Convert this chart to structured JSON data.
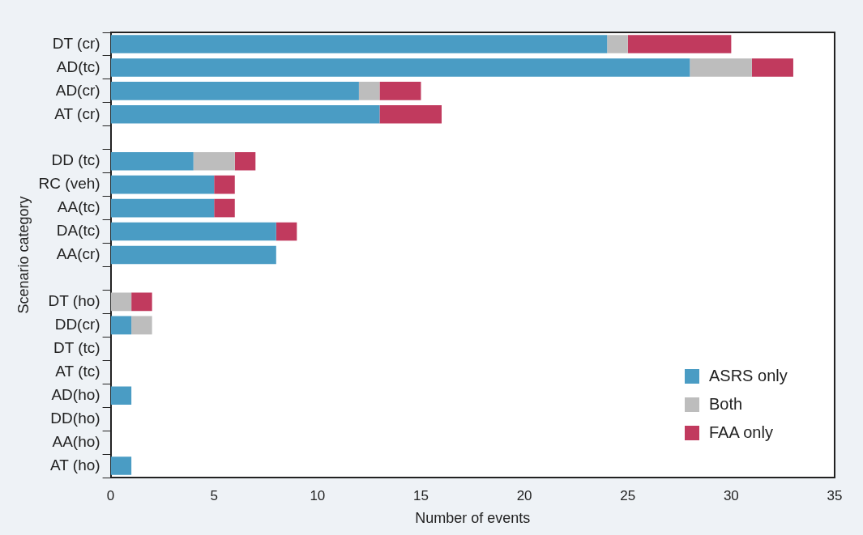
{
  "chart_data": {
    "type": "bar",
    "orientation": "horizontal",
    "stacked": true,
    "xlabel": "Number of events",
    "ylabel": "Scenario category",
    "categories": [
      "DT (cr)",
      "AD(tc)",
      "AD(cr)",
      "AT (cr)",
      null,
      "DD (tc)",
      "RC (veh)",
      "AA(tc)",
      "DA(tc)",
      "AA(cr)",
      null,
      "DT (ho)",
      "DD(cr)",
      "DT (tc)",
      "AT (tc)",
      "AD(ho)",
      "DD(ho)",
      "AA(ho)",
      "AT (ho)"
    ],
    "series": [
      {
        "name": "ASRS only",
        "color": "#4a9cc4",
        "values": [
          24,
          28,
          12,
          13,
          null,
          4,
          5,
          5,
          8,
          8,
          null,
          0,
          1,
          0,
          0,
          1,
          0,
          0,
          1
        ]
      },
      {
        "name": "Both",
        "color": "#bdbdbd",
        "values": [
          1,
          3,
          1,
          0,
          null,
          2,
          0,
          0,
          0,
          0,
          null,
          1,
          1,
          0,
          0,
          0,
          0,
          0,
          0
        ]
      },
      {
        "name": "FAA only",
        "color": "#c13a5e",
        "values": [
          5,
          2,
          2,
          3,
          null,
          1,
          1,
          1,
          1,
          0,
          null,
          1,
          0,
          0,
          0,
          0,
          0,
          0,
          0
        ]
      }
    ],
    "xlim": [
      0,
      35
    ],
    "xticks": [
      0,
      5,
      10,
      15,
      20,
      25,
      30,
      35
    ],
    "grid": false,
    "legend": "bottom right"
  }
}
